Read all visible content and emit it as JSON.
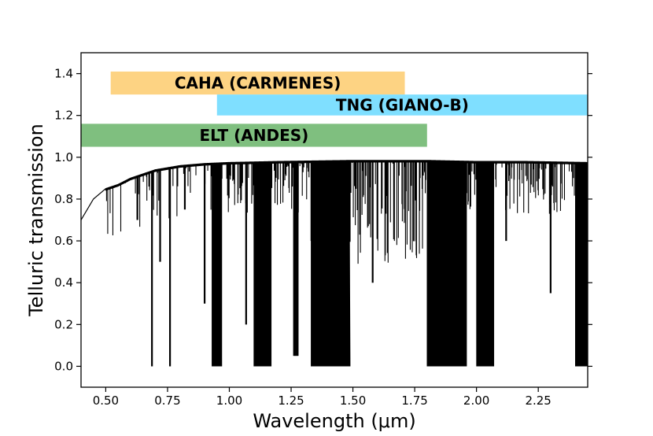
{
  "chart_data": {
    "type": "line",
    "title": "",
    "xlabel": "Wavelength (μm)",
    "ylabel": "Telluric transmission",
    "xlim": [
      0.4,
      2.45
    ],
    "ylim": [
      -0.1,
      1.5
    ],
    "x_ticks": [
      0.5,
      0.75,
      1.0,
      1.25,
      1.5,
      1.75,
      2.0,
      2.25
    ],
    "x_tick_labels": [
      "0.50",
      "0.75",
      "1.00",
      "1.25",
      "1.50",
      "1.75",
      "2.00",
      "2.25"
    ],
    "y_ticks": [
      0.0,
      0.2,
      0.4,
      0.6,
      0.8,
      1.0,
      1.2,
      1.4
    ],
    "y_tick_labels": [
      "0.0",
      "0.2",
      "0.4",
      "0.6",
      "0.8",
      "1.0",
      "1.2",
      "1.4"
    ],
    "grid": false,
    "bands": [
      {
        "label": "CAHA (CARMENES)",
        "x_start": 0.52,
        "x_end": 1.71,
        "y_low": 1.3,
        "y_high": 1.41,
        "color": "#fdd383"
      },
      {
        "label": "TNG (GIANO-B)",
        "x_start": 0.95,
        "x_end": 2.45,
        "y_low": 1.2,
        "y_high": 1.3,
        "color": "#7fdfff"
      },
      {
        "label": "ELT (ANDES)",
        "x_start": 0.4,
        "x_end": 1.8,
        "y_low": 1.05,
        "y_high": 1.16,
        "color": "#7fbf7f"
      }
    ],
    "series": [
      {
        "name": "Telluric transmission",
        "color": "#000000",
        "continuum": {
          "x": [
            0.4,
            0.45,
            0.5,
            0.55,
            0.6,
            0.65,
            0.7,
            0.75,
            0.8,
            0.9,
            1.0,
            1.2,
            1.5,
            1.8,
            2.0,
            2.2,
            2.45
          ],
          "y": [
            0.7,
            0.8,
            0.85,
            0.87,
            0.9,
            0.92,
            0.94,
            0.95,
            0.96,
            0.97,
            0.975,
            0.98,
            0.985,
            0.985,
            0.98,
            0.98,
            0.975
          ]
        },
        "absorption_bands": [
          {
            "x_start": 0.93,
            "x_end": 0.97,
            "min_transmission": 0.0
          },
          {
            "x_start": 1.1,
            "x_end": 1.17,
            "min_transmission": 0.0
          },
          {
            "x_start": 1.26,
            "x_end": 1.28,
            "min_transmission": 0.05
          },
          {
            "x_start": 1.33,
            "x_end": 1.49,
            "min_transmission": 0.0
          },
          {
            "x_start": 1.8,
            "x_end": 1.96,
            "min_transmission": 0.0
          },
          {
            "x_start": 2.0,
            "x_end": 2.07,
            "min_transmission": 0.0
          },
          {
            "x_start": 2.4,
            "x_end": 2.45,
            "min_transmission": 0.0
          }
        ],
        "strong_lines": [
          {
            "x": 0.628,
            "y": 0.7
          },
          {
            "x": 0.687,
            "y": 0.0
          },
          {
            "x": 0.72,
            "y": 0.5
          },
          {
            "x": 0.76,
            "y": 0.0
          },
          {
            "x": 0.82,
            "y": 0.75
          },
          {
            "x": 0.9,
            "y": 0.3
          },
          {
            "x": 1.068,
            "y": 0.2
          },
          {
            "x": 1.58,
            "y": 0.4
          },
          {
            "x": 2.12,
            "y": 0.6
          },
          {
            "x": 2.3,
            "y": 0.35
          }
        ]
      }
    ]
  }
}
